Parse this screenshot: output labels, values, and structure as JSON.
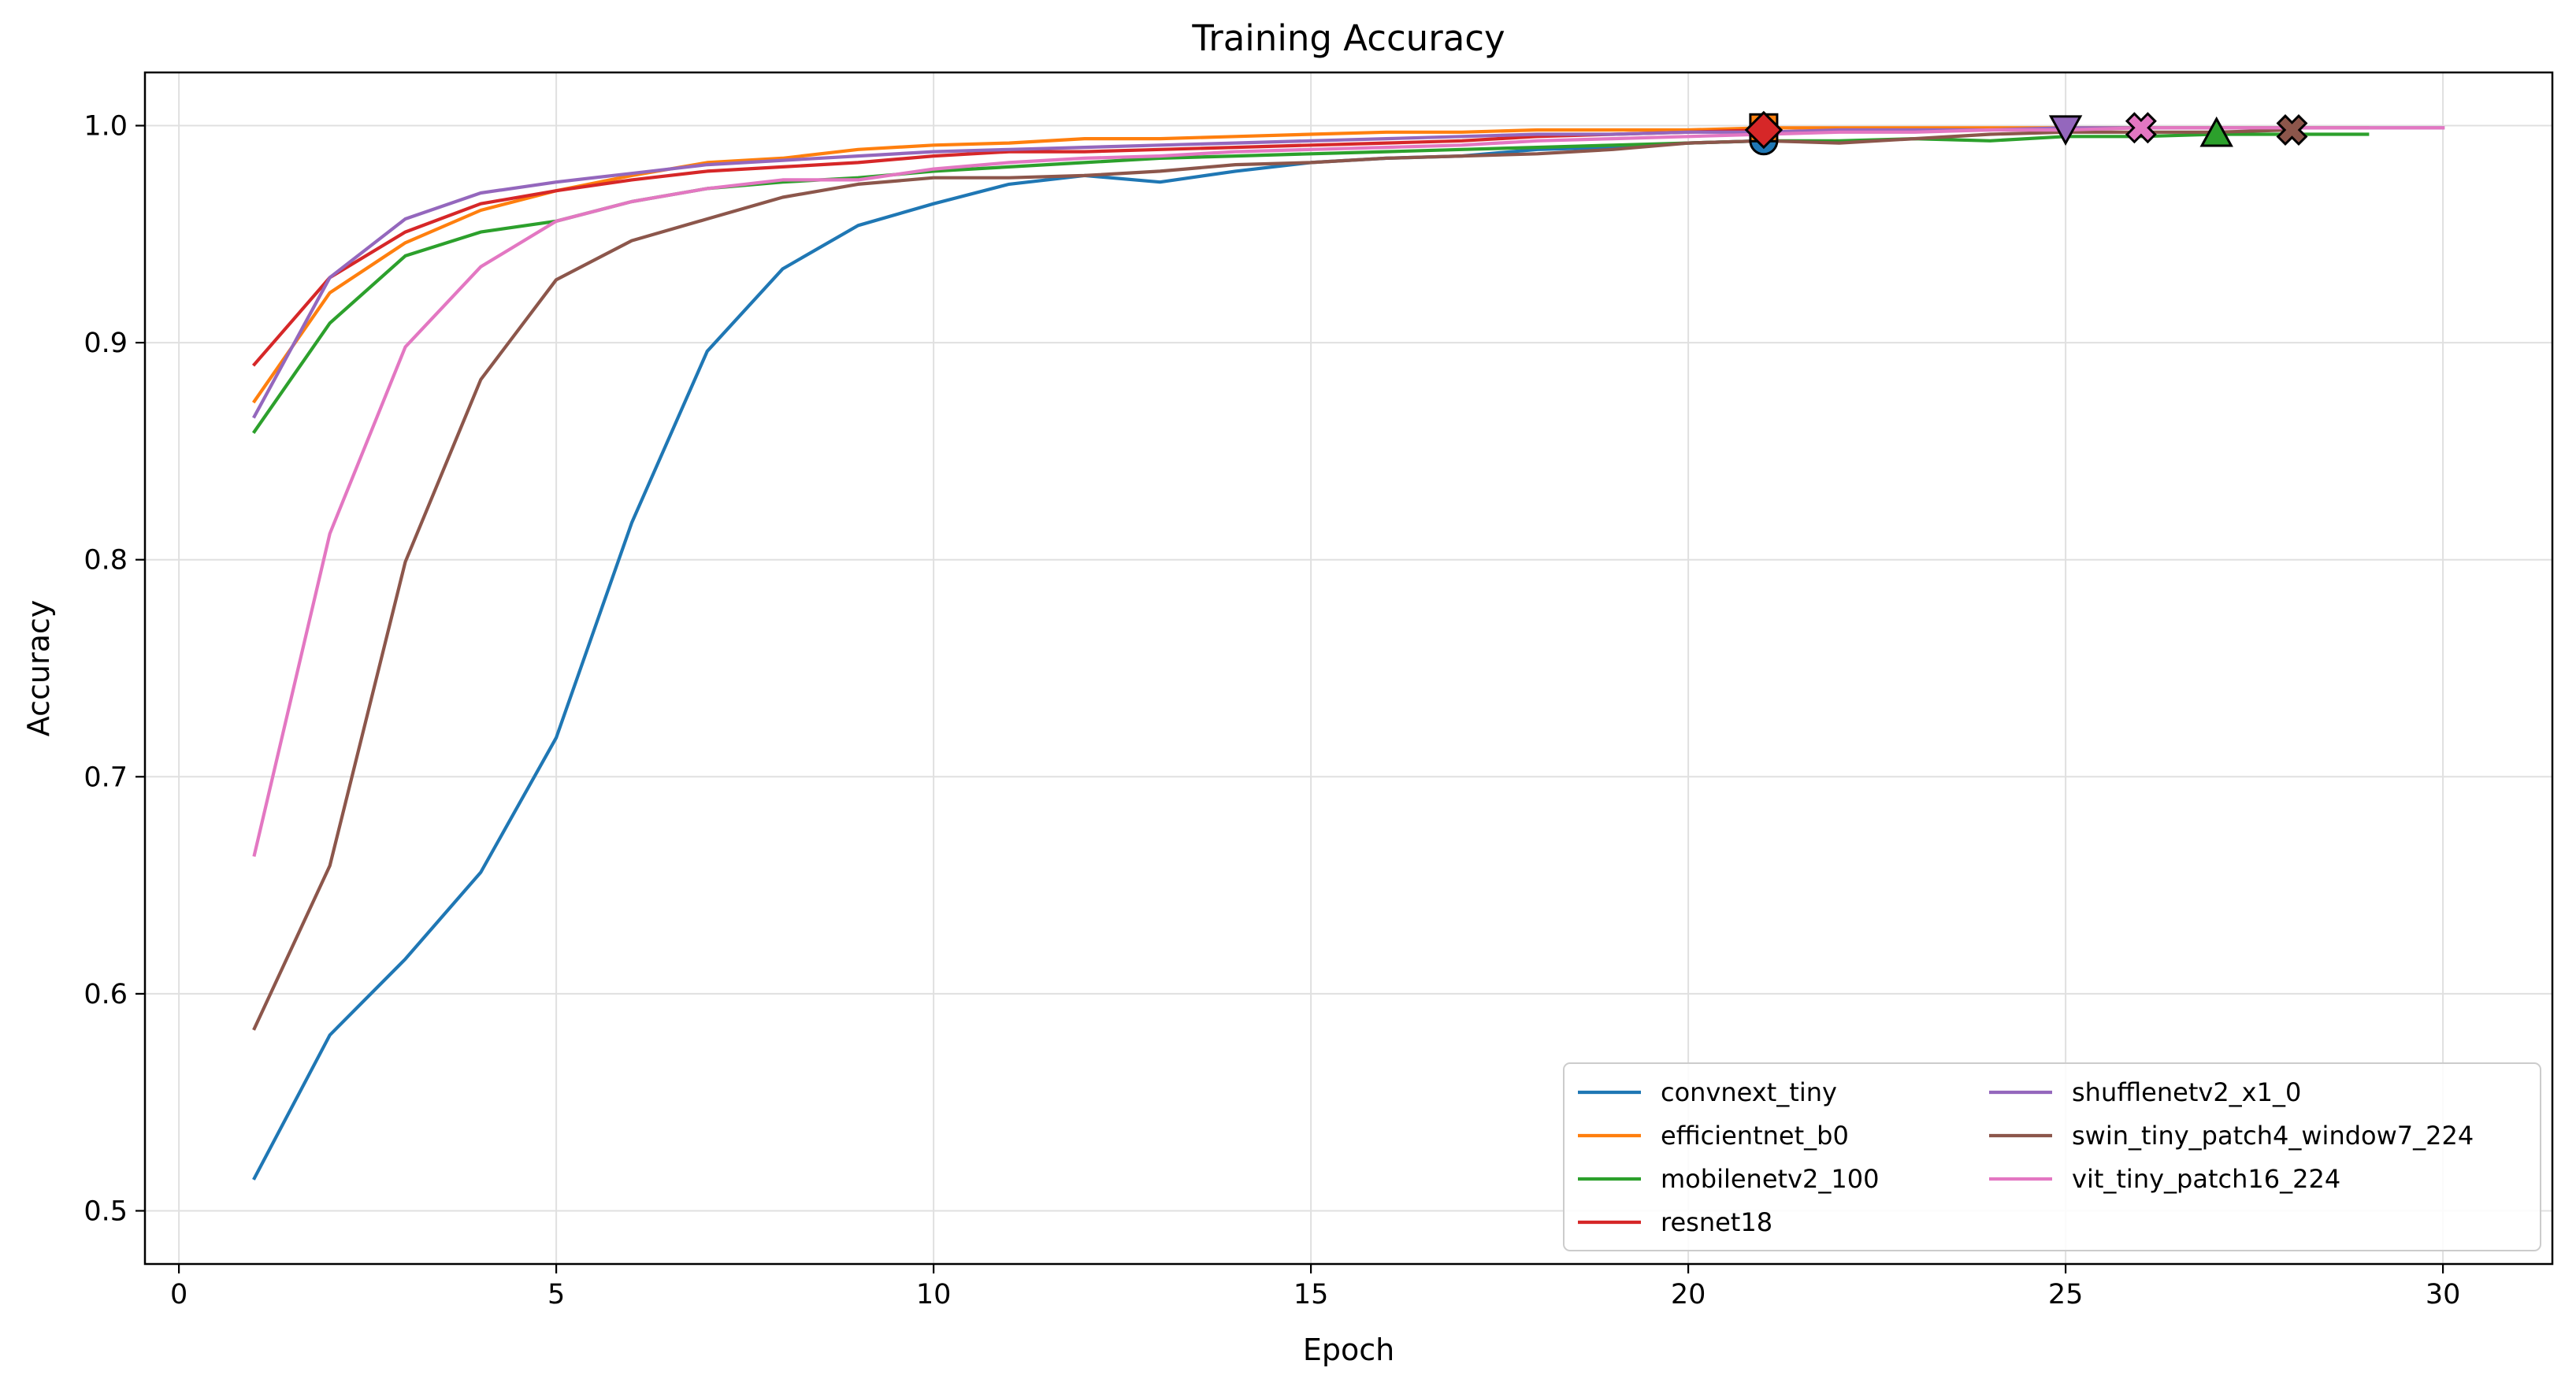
{
  "chart_data": {
    "type": "line",
    "title": "Training Accuracy",
    "xlabel": "Epoch",
    "ylabel": "Accuracy",
    "xlim": [
      -0.45,
      31.45
    ],
    "ylim": [
      0.4755,
      1.0245
    ],
    "xticks": [
      0,
      5,
      10,
      15,
      20,
      25,
      30
    ],
    "yticks": [
      0.5,
      0.6,
      0.7,
      0.8,
      0.9,
      1.0
    ],
    "xtick_labels": [
      "0",
      "5",
      "10",
      "15",
      "20",
      "25",
      "30"
    ],
    "ytick_labels": [
      "0.5",
      "0.6",
      "0.7",
      "0.8",
      "0.9",
      "1.0"
    ],
    "grid": true,
    "legend_position": "lower-right",
    "legend_columns": 2,
    "series": [
      {
        "name": "convnext_tiny",
        "color": "#1f77b4",
        "x": [
          1,
          2,
          3,
          4,
          5,
          6,
          7,
          8,
          9,
          10,
          11,
          12,
          13,
          14,
          15,
          16,
          17,
          18,
          19,
          20,
          21
        ],
        "values": [
          0.515,
          0.581,
          0.616,
          0.656,
          0.718,
          0.817,
          0.896,
          0.934,
          0.954,
          0.964,
          0.973,
          0.977,
          0.974,
          0.979,
          0.983,
          0.985,
          0.986,
          0.989,
          0.99,
          0.992,
          0.993
        ],
        "best_marker": "circle"
      },
      {
        "name": "efficientnet_b0",
        "color": "#ff7f0e",
        "x": [
          1,
          2,
          3,
          4,
          5,
          6,
          7,
          8,
          9,
          10,
          11,
          12,
          13,
          14,
          15,
          16,
          17,
          18,
          19,
          20,
          21,
          22,
          23,
          24,
          25,
          26,
          27,
          28,
          29
        ],
        "values": [
          0.873,
          0.923,
          0.946,
          0.961,
          0.97,
          0.977,
          0.983,
          0.985,
          0.989,
          0.991,
          0.992,
          0.994,
          0.994,
          0.995,
          0.996,
          0.997,
          0.997,
          0.998,
          0.998,
          0.998,
          0.999,
          0.999,
          0.999,
          0.999,
          0.999,
          0.999,
          0.999,
          0.999,
          0.999
        ],
        "best_marker": "square"
      },
      {
        "name": "mobilenetv2_100",
        "color": "#2ca02c",
        "x": [
          1,
          2,
          3,
          4,
          5,
          6,
          7,
          8,
          9,
          10,
          11,
          12,
          13,
          14,
          15,
          16,
          17,
          18,
          19,
          20,
          21,
          22,
          23,
          24,
          25,
          26,
          27,
          28,
          29
        ],
        "values": [
          0.859,
          0.909,
          0.94,
          0.951,
          0.956,
          0.965,
          0.971,
          0.974,
          0.976,
          0.979,
          0.981,
          0.983,
          0.985,
          0.986,
          0.987,
          0.988,
          0.989,
          0.99,
          0.991,
          0.992,
          0.993,
          0.993,
          0.994,
          0.993,
          0.995,
          0.995,
          0.996,
          0.996,
          0.996
        ],
        "best_marker": "triangle-up"
      },
      {
        "name": "resnet18",
        "color": "#d62728",
        "x": [
          1,
          2,
          3,
          4,
          5,
          6,
          7,
          8,
          9,
          10,
          11,
          12,
          13,
          14,
          15,
          16,
          17,
          18,
          19,
          20,
          21
        ],
        "values": [
          0.89,
          0.93,
          0.951,
          0.964,
          0.97,
          0.975,
          0.979,
          0.981,
          0.983,
          0.986,
          0.988,
          0.988,
          0.989,
          0.99,
          0.991,
          0.992,
          0.993,
          0.995,
          0.996,
          0.997,
          0.998
        ],
        "best_marker": "diamond"
      },
      {
        "name": "shufflenetv2_x1_0",
        "color": "#9467bd",
        "x": [
          1,
          2,
          3,
          4,
          5,
          6,
          7,
          8,
          9,
          10,
          11,
          12,
          13,
          14,
          15,
          16,
          17,
          18,
          19,
          20,
          21,
          22,
          23,
          24,
          25,
          26,
          27,
          28,
          29,
          30
        ],
        "values": [
          0.866,
          0.93,
          0.957,
          0.969,
          0.974,
          0.978,
          0.982,
          0.984,
          0.986,
          0.988,
          0.989,
          0.99,
          0.991,
          0.992,
          0.993,
          0.994,
          0.995,
          0.996,
          0.996,
          0.997,
          0.997,
          0.998,
          0.998,
          0.998,
          0.999,
          0.999,
          0.999,
          0.999,
          0.999,
          0.999
        ],
        "best_marker": "triangle-down"
      },
      {
        "name": "swin_tiny_patch4_window7_224",
        "color": "#8c564b",
        "x": [
          1,
          2,
          3,
          4,
          5,
          6,
          7,
          8,
          9,
          10,
          11,
          12,
          13,
          14,
          15,
          16,
          17,
          18,
          19,
          20,
          21,
          22,
          23,
          24,
          25,
          26,
          27,
          28
        ],
        "values": [
          0.584,
          0.659,
          0.799,
          0.883,
          0.929,
          0.947,
          0.957,
          0.967,
          0.973,
          0.976,
          0.976,
          0.977,
          0.979,
          0.982,
          0.983,
          0.985,
          0.986,
          0.987,
          0.989,
          0.992,
          0.993,
          0.992,
          0.994,
          0.996,
          0.997,
          0.997,
          0.997,
          0.998
        ],
        "best_marker": "x"
      },
      {
        "name": "vit_tiny_patch16_224",
        "color": "#e377c2",
        "x": [
          1,
          2,
          3,
          4,
          5,
          6,
          7,
          8,
          9,
          10,
          11,
          12,
          13,
          14,
          15,
          16,
          17,
          18,
          19,
          20,
          21,
          22,
          23,
          24,
          25,
          26,
          27,
          28,
          29,
          30
        ],
        "values": [
          0.664,
          0.812,
          0.898,
          0.935,
          0.956,
          0.965,
          0.971,
          0.975,
          0.975,
          0.98,
          0.983,
          0.985,
          0.986,
          0.988,
          0.989,
          0.99,
          0.991,
          0.993,
          0.994,
          0.995,
          0.996,
          0.997,
          0.997,
          0.998,
          0.998,
          0.999,
          0.999,
          0.999,
          0.999,
          0.999
        ],
        "best_marker": "x"
      }
    ]
  }
}
